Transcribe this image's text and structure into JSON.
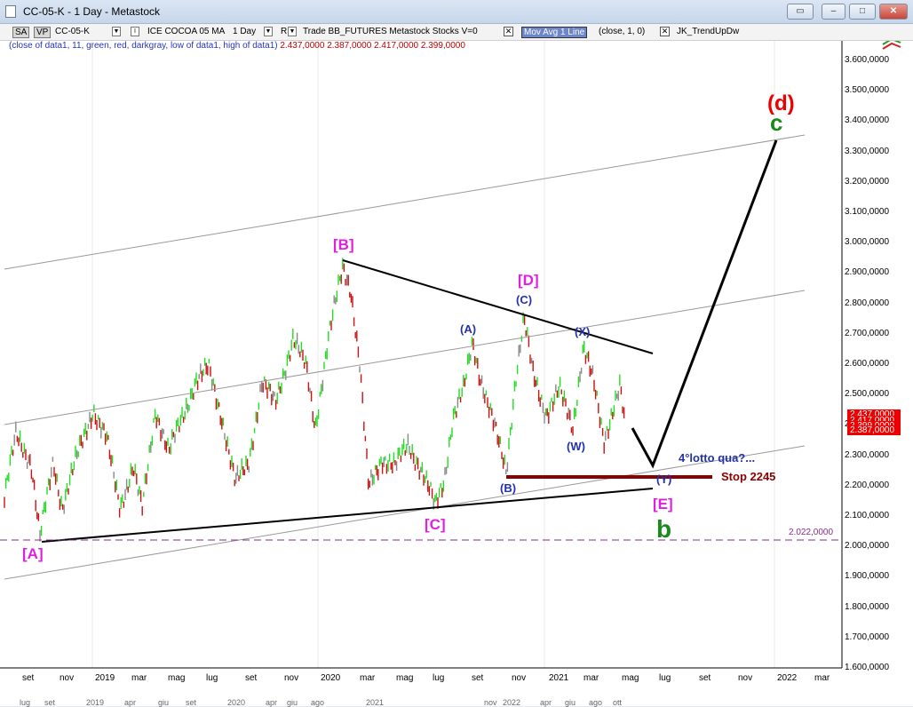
{
  "window": {
    "title": "CC-05-K - 1 Day - Metastock",
    "buttons": [
      "restore-icon",
      "minimize-icon",
      "maximize-icon",
      "close-icon"
    ]
  },
  "toolbar": {
    "sa": "SA",
    "vp": "VP",
    "symbol": "CC-05-K",
    "instrument": "ICE COCOA 05 MA",
    "interval": "1 Day",
    "r_label": "R",
    "trade_info": "Trade  BB_FUTURES  Metastock  Stocks  V=0",
    "indicator_selected": "Mov Avg 1 Line",
    "indicator_params": "(close,  1,  0)",
    "indicator2": "JK_TrendUpDw"
  },
  "info_line": {
    "params": "(close of data1,  11,  green,  red,  darkgray,  low of data1,  high of data1)",
    "values": "2.437,0000  2.387,0000  2.417,0000  2.399,0000"
  },
  "y_axis": [
    "3.600,0000",
    "3.500,0000",
    "3.400,0000",
    "3.300,0000",
    "3.200,0000",
    "3.100,0000",
    "3.000,0000",
    "2.900,0000",
    "2.800,0000",
    "2.700,0000",
    "2.600,0000",
    "2.500,0000",
    "2.400,0000",
    "2.300,0000",
    "2.200,0000",
    "2.100,0000",
    "2.000,0000",
    "1.900,0000",
    "1.800,0000",
    "1.700,0000",
    "1.600,0000"
  ],
  "price_boxes": [
    "2.437,0000",
    "2.417,0000",
    "2.399,0000",
    "2.387,0000"
  ],
  "x_axis": [
    "set",
    "nov",
    "2019",
    "mar",
    "mag",
    "lug",
    "set",
    "nov",
    "2020",
    "mar",
    "mag",
    "lug",
    "set",
    "nov",
    "2021",
    "mar",
    "mag",
    "lug",
    "set",
    "nov",
    "2022",
    "mar"
  ],
  "x_axis_lower": [
    "lug",
    "set",
    "2019",
    "apr",
    "giu",
    "set",
    "2020",
    "apr",
    "giu",
    "ago",
    "2021",
    "nov",
    "2022",
    "apr",
    "giu",
    "ago",
    "ott"
  ],
  "labels": {
    "A": "[A]",
    "B": "[B]",
    "C": "[C]",
    "D": "[D]",
    "E": "[E]",
    "wa": "(A)",
    "wb": "(B)",
    "wc": "(C)",
    "wx": "(X)",
    "ww": "(W)",
    "wy": "(Y)",
    "d": "(d)",
    "c": "c",
    "b": "b",
    "lotto": "4°lotto qua?...",
    "stop": "Stop 2245",
    "level": "2.022,0000"
  },
  "colors": {
    "up": "#22dd22",
    "down": "#cc1111",
    "neutral": "#888888",
    "magenta_wave": "#e020e0",
    "blue_wave": "#2233a8",
    "stop_line": "#8b0000",
    "green_label": "#1a8a1a"
  }
}
